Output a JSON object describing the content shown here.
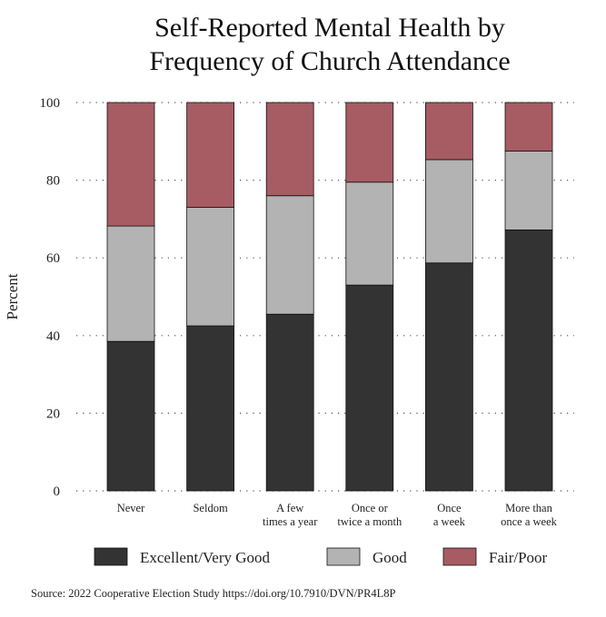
{
  "chart_data": {
    "type": "bar",
    "stacked": true,
    "title": [
      "Self-Reported Mental Health by",
      "Frequency of Church Attendance"
    ],
    "xlabel": "",
    "ylabel": "Percent",
    "ylim": [
      0,
      100
    ],
    "yticks": [
      0,
      20,
      40,
      60,
      80,
      100
    ],
    "grid": true,
    "categories": [
      [
        "Never"
      ],
      [
        "Seldom"
      ],
      [
        "A few",
        "times a year"
      ],
      [
        "Once or",
        "twice a month"
      ],
      [
        "Once",
        "a week"
      ],
      [
        "More than",
        "once a week"
      ]
    ],
    "series": [
      {
        "name": "Excellent/Very Good",
        "color": "#333333",
        "values": [
          38.5,
          42.5,
          45.5,
          53.0,
          58.7,
          67.2
        ]
      },
      {
        "name": "Good",
        "color": "#b3b3b3",
        "values": [
          29.7,
          30.5,
          30.5,
          26.5,
          26.6,
          20.3
        ]
      },
      {
        "name": "Fair/Poor",
        "color": "#a65c62",
        "values": [
          31.8,
          27.0,
          24.0,
          20.5,
          14.7,
          12.5
        ]
      }
    ],
    "legend_position": "bottom",
    "source": "Source: 2022 Cooperative Election Study https://doi.org/10.7910/DVN/PR4L8P"
  }
}
